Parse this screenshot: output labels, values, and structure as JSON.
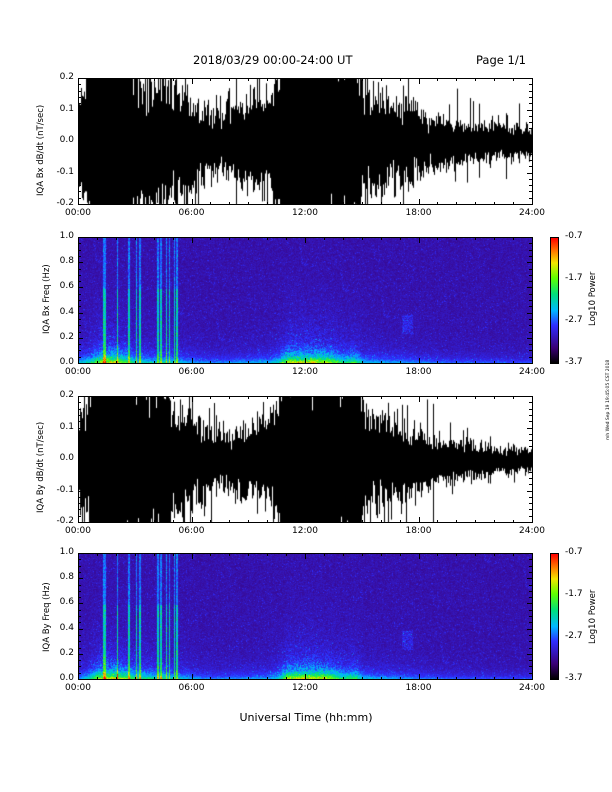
{
  "header": {
    "date_range": "2018/03/29  00:00-24:00 UT",
    "page": "Page 1/1"
  },
  "side_text": "mh Wed Sep 19 19:45:05 CST 2018",
  "x_axis": {
    "title": "Universal Time (hh:mm)",
    "ticks": [
      "00:00",
      "06:00",
      "12:00",
      "18:00",
      "24:00"
    ]
  },
  "chart_data": [
    {
      "type": "line",
      "ylabel": "IQA Bx dB/dt (nT/sec)",
      "xlim": [
        0,
        24
      ],
      "ylim": [
        -0.2,
        0.2
      ],
      "yticks": [
        "0.2",
        "0.1",
        "0.0",
        "-0.1",
        "-0.2"
      ],
      "series": [
        {
          "values": "dense time series (~60000 samples)"
        }
      ],
      "amplitude_envelope": {
        "x": [
          0,
          0.5,
          1,
          1.5,
          2,
          2.5,
          3,
          4,
          4.5,
          5,
          6,
          7,
          8,
          9,
          10,
          10.5,
          11,
          12,
          13,
          14,
          14.5,
          15,
          16,
          17,
          18,
          19,
          20,
          21,
          22,
          23,
          24
        ],
        "y": [
          0.09,
          0.12,
          0.22,
          0.25,
          0.25,
          0.18,
          0.12,
          0.1,
          0.13,
          0.1,
          0.07,
          0.05,
          0.055,
          0.07,
          0.08,
          0.12,
          0.25,
          0.25,
          0.25,
          0.14,
          0.18,
          0.09,
          0.07,
          0.065,
          0.05,
          0.04,
          0.035,
          0.03,
          0.03,
          0.025,
          0.025
        ]
      }
    },
    {
      "type": "heatmap",
      "ylabel": "IQA Bx Freq (Hz)",
      "xlim": [
        0,
        24
      ],
      "ylim": [
        0,
        1.0
      ],
      "yticks": [
        "1.0",
        "0.8",
        "0.6",
        "0.4",
        "0.2",
        "0.0"
      ],
      "colorbar": {
        "label": "Log10 Power",
        "range": [
          -3.7,
          -0.7
        ],
        "ticks": [
          "-0.7",
          "-1.7",
          "-2.7",
          "-3.7"
        ]
      }
    },
    {
      "type": "line",
      "ylabel": "IQA By dB/dt (nT/sec)",
      "xlim": [
        0,
        24
      ],
      "ylim": [
        -0.2,
        0.2
      ],
      "yticks": [
        "0.2",
        "0.1",
        "0.0",
        "-0.1",
        "-0.2"
      ],
      "series": [
        {
          "values": "dense time series (~60000 samples)"
        }
      ],
      "amplitude_envelope": {
        "x": [
          0,
          0.5,
          1,
          1.5,
          2,
          2.5,
          3,
          4,
          4.5,
          5,
          6,
          7,
          8,
          9,
          10,
          10.5,
          11,
          12,
          13,
          14,
          14.5,
          15,
          16,
          17,
          18,
          19,
          20,
          21,
          22,
          23,
          24
        ],
        "y": [
          0.06,
          0.12,
          0.22,
          0.25,
          0.25,
          0.2,
          0.16,
          0.13,
          0.15,
          0.1,
          0.07,
          0.045,
          0.05,
          0.06,
          0.07,
          0.1,
          0.25,
          0.25,
          0.25,
          0.14,
          0.18,
          0.09,
          0.07,
          0.06,
          0.045,
          0.035,
          0.03,
          0.025,
          0.02,
          0.02,
          0.02
        ]
      }
    },
    {
      "type": "heatmap",
      "ylabel": "IQA By Freq (Hz)",
      "xlim": [
        0,
        24
      ],
      "ylim": [
        0,
        1.0
      ],
      "yticks": [
        "1.0",
        "0.8",
        "0.6",
        "0.4",
        "0.2",
        "0.0"
      ],
      "colorbar": {
        "label": "Log10 Power",
        "range": [
          -3.7,
          -0.7
        ],
        "ticks": [
          "-0.7",
          "-1.7",
          "-2.7",
          "-3.7"
        ]
      }
    }
  ]
}
